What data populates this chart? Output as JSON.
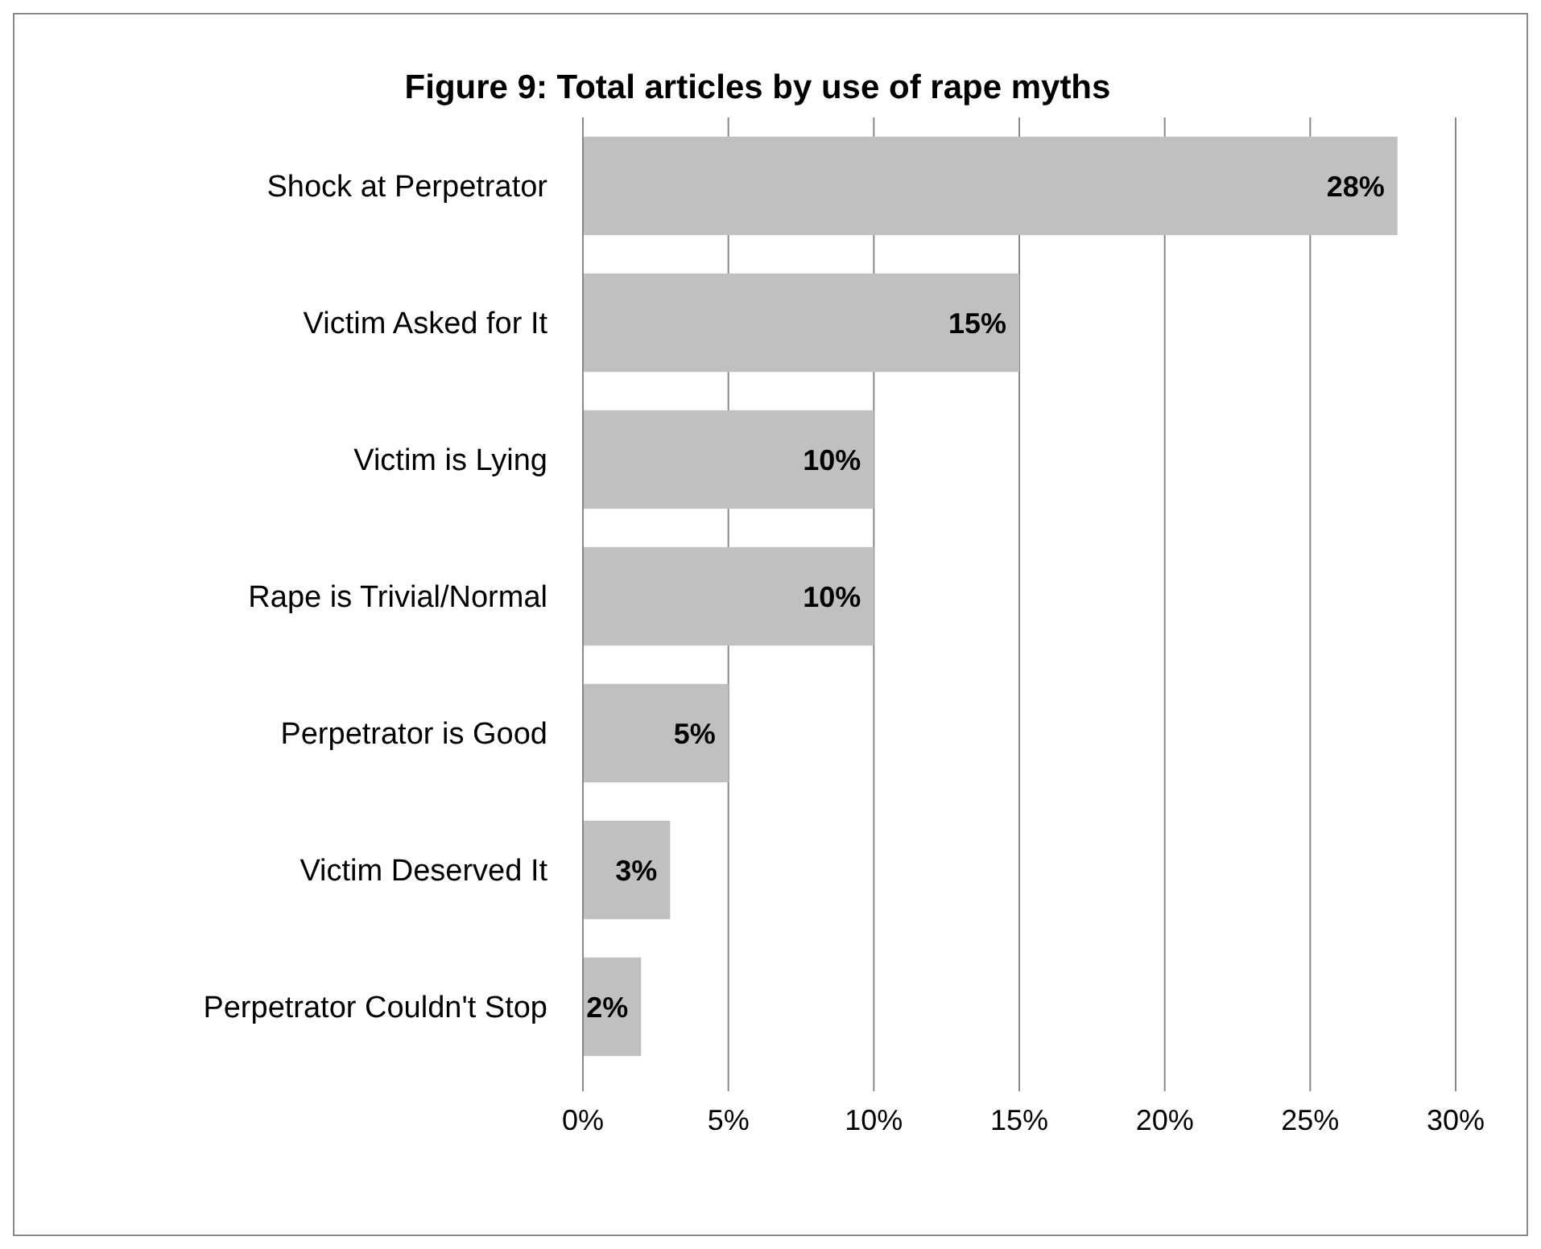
{
  "chart_data": {
    "type": "bar",
    "orientation": "horizontal",
    "title": "Figure 9: Total articles by use of rape myths",
    "categories": [
      "Shock at Perpetrator",
      "Victim Asked for It",
      "Victim is Lying",
      "Rape is Trivial/Normal",
      "Perpetrator is Good",
      "Victim Deserved It",
      "Perpetrator Couldn't Stop"
    ],
    "values": [
      28,
      15,
      10,
      10,
      5,
      3,
      2
    ],
    "color": "#c0c0c0",
    "value_labels": [
      "28%",
      "15%",
      "10%",
      "10%",
      "5%",
      "3%",
      "2%"
    ],
    "xlim": [
      0,
      30
    ],
    "xticks": [
      {
        "value": 0,
        "label": "0%"
      },
      {
        "value": 5,
        "label": "5%"
      },
      {
        "value": 10,
        "label": "10%"
      },
      {
        "value": 15,
        "label": "15%"
      },
      {
        "value": 20,
        "label": "20%"
      },
      {
        "value": 25,
        "label": "25%"
      },
      {
        "value": 30,
        "label": "30%"
      }
    ],
    "grid": "x"
  }
}
